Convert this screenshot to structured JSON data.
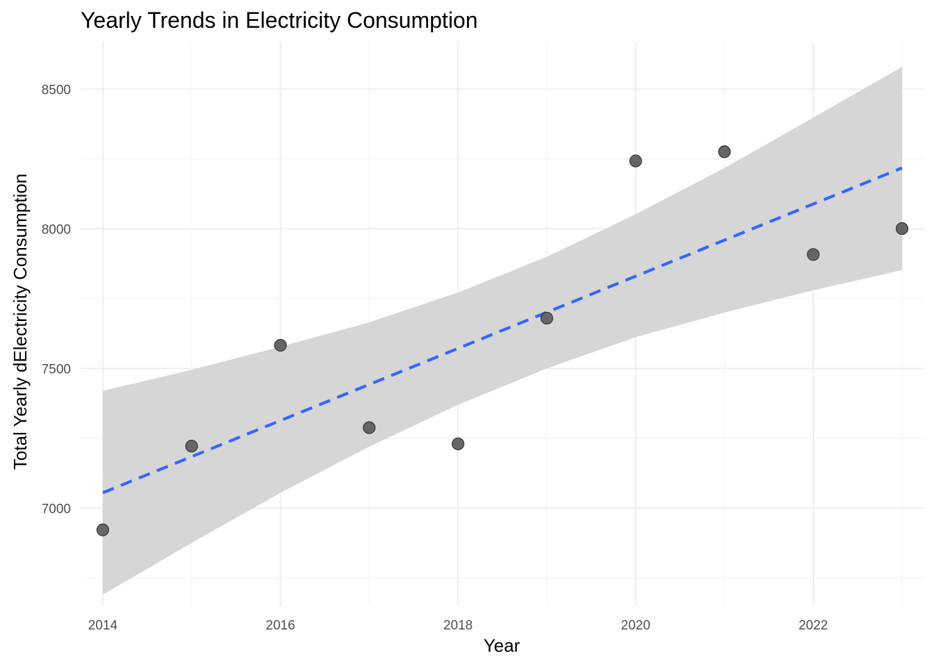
{
  "chart_data": {
    "type": "scatter",
    "title": "Yearly Trends in Electricity Consumption",
    "xlabel": "Year",
    "ylabel": "Total Yearly dElectricity Consumption",
    "xlim": [
      2013.75,
      2023.25
    ],
    "ylim": [
      6650,
      8670
    ],
    "x_ticks": [
      2014,
      2016,
      2018,
      2020,
      2022
    ],
    "y_ticks": [
      7000,
      7500,
      8000,
      8500
    ],
    "x_tick_labels": [
      "2014",
      "2016",
      "2018",
      "2020",
      "2022"
    ],
    "y_tick_labels": [
      "7000",
      "7500",
      "8000",
      "8500"
    ],
    "grid": true,
    "legend": "none",
    "colors": {
      "point_fill": "#666666",
      "point_stroke": "#333333",
      "trend_line": "#3366ff",
      "confidence_band": "#d6d6d6"
    },
    "series": [
      {
        "values": [
          {
            "x": 2014,
            "y": 6922
          },
          {
            "x": 2015,
            "y": 7222
          },
          {
            "x": 2016,
            "y": 7583
          },
          {
            "x": 2017,
            "y": 7288
          },
          {
            "x": 2018,
            "y": 7230
          },
          {
            "x": 2019,
            "y": 7680
          },
          {
            "x": 2020,
            "y": 8243
          },
          {
            "x": 2021,
            "y": 8276
          },
          {
            "x": 2022,
            "y": 7908
          },
          {
            "x": 2023,
            "y": 8001
          }
        ]
      }
    ],
    "trend": {
      "style": "dashed",
      "x": [
        2014,
        2023
      ],
      "y": [
        7055,
        8218
      ]
    },
    "confidence_band": {
      "x": [
        2014,
        2015,
        2016,
        2017,
        2018,
        2019,
        2020,
        2021,
        2022,
        2023
      ],
      "upper": [
        7420,
        7495,
        7578,
        7665,
        7772,
        7900,
        8052,
        8218,
        8398,
        8580
      ],
      "lower": [
        6690,
        6875,
        7055,
        7220,
        7370,
        7500,
        7612,
        7700,
        7780,
        7852
      ]
    }
  }
}
